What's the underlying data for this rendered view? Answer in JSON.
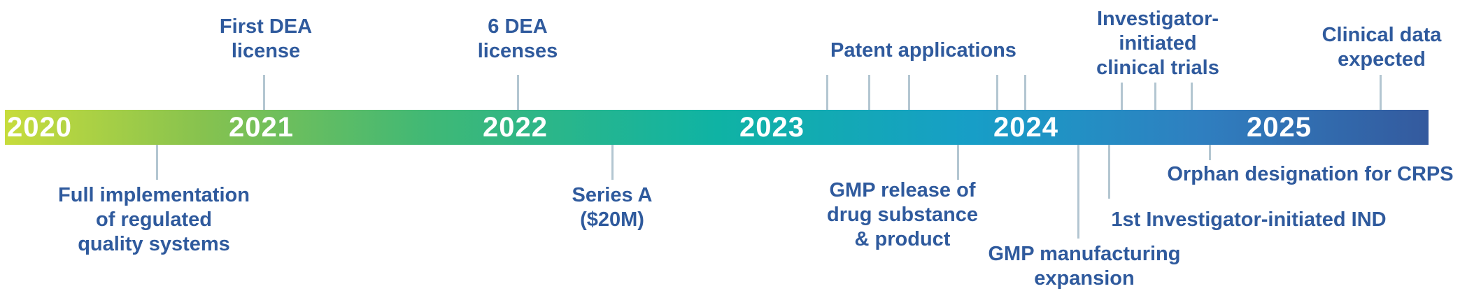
{
  "years": [
    "2020",
    "2021",
    "2022",
    "2023",
    "2024",
    "2025"
  ],
  "milestones": {
    "first_dea": "First DEA\nlicense",
    "six_dea": "6 DEA\nlicenses",
    "patent": "Patent applications",
    "investigator_trials": "Investigator-\ninitiated\nclinical trials",
    "clinical_data": "Clinical data\nexpected",
    "full_implementation": "Full implementation\nof regulated\nquality systems",
    "series_a": "Series A\n($20M)",
    "gmp_release": "GMP release of\ndrug substance\n& product",
    "gmp_manufacturing": "GMP manufacturing\nexpansion",
    "first_ind": "1st Investigator-initiated IND",
    "orphan": "Orphan designation for CRPS"
  }
}
